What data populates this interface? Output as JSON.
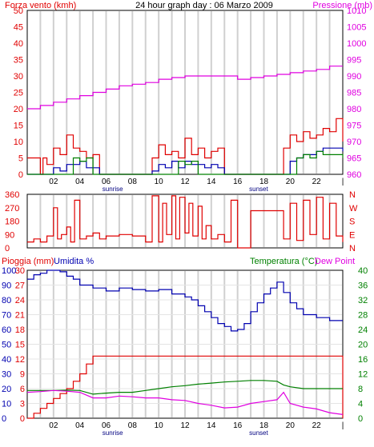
{
  "title": "24 hour graph day : 06 Marzo 2009",
  "colors": {
    "red": "#e00000",
    "magenta": "#e000e0",
    "green": "#008000",
    "blue": "#0000b0",
    "grid": "#d0d0d0",
    "frame": "#000000"
  },
  "chart_data": [
    {
      "type": "line",
      "name": "wind-pressure",
      "left_label": "Forza vento (kmh)",
      "right_label": "Pressione (mb)",
      "left_ticks": [
        "0",
        "5",
        "10",
        "15",
        "20",
        "25",
        "30",
        "35",
        "40",
        "45",
        "50"
      ],
      "right_ticks": [
        "960",
        "965",
        "970",
        "975",
        "980",
        "985",
        "990",
        "995",
        "1000",
        "1005",
        "1010"
      ],
      "ylim": [
        0,
        50
      ],
      "y2lim": [
        960,
        1010
      ],
      "x_ticks": [
        "02",
        "04",
        "06",
        "08",
        "10",
        "12",
        "14",
        "16",
        "18",
        "20",
        "22"
      ],
      "sunrise_label": "sunrise",
      "sunset_label": "sunset",
      "series": [
        {
          "name": "gust",
          "color": "#e00000",
          "x": [
            0,
            1,
            1.2,
            1.5,
            2,
            2.5,
            3,
            3.5,
            4,
            4.5,
            5,
            5.5,
            6,
            8,
            9,
            9.5,
            10,
            10.5,
            11,
            11.5,
            12,
            12.5,
            13,
            13.5,
            14,
            14.5,
            15,
            16,
            18,
            19.5,
            20,
            20.5,
            21,
            21.5,
            22,
            22.5,
            23,
            23.5,
            24
          ],
          "y": [
            5,
            0,
            5,
            3,
            8,
            6,
            12,
            8,
            7,
            5,
            6,
            0,
            0,
            0,
            0,
            5,
            9,
            6,
            7,
            5,
            11,
            6,
            8,
            5,
            7,
            8,
            0,
            0,
            0,
            8,
            12,
            10,
            13,
            11,
            12,
            14,
            13,
            17,
            10
          ]
        },
        {
          "name": "average",
          "color": "#0000b0",
          "x": [
            0,
            1.5,
            2,
            2.5,
            3,
            3.5,
            4,
            4.5,
            5,
            5.5,
            8,
            9,
            9.5,
            10,
            10.5,
            11,
            11.5,
            12,
            12.5,
            13,
            13.5,
            14,
            14.5,
            15,
            18,
            19.5,
            20,
            20.5,
            21,
            21.5,
            22,
            22.5,
            23,
            23.5,
            24
          ],
          "y": [
            0,
            0,
            2,
            1,
            3,
            3,
            4,
            2,
            2,
            0,
            0,
            0,
            1,
            3,
            2,
            4,
            2,
            4,
            3,
            3,
            2,
            3,
            2,
            0,
            0,
            0,
            4,
            5,
            6,
            6,
            7,
            8,
            8,
            8,
            7
          ]
        },
        {
          "name": "wind",
          "color": "#008000",
          "x": [
            0,
            3,
            3.5,
            4,
            4.5,
            5,
            9,
            11,
            11.5,
            12,
            12.5,
            13,
            20,
            20.5,
            21,
            21.5,
            22,
            22.5,
            23,
            23.5,
            24
          ],
          "y": [
            0,
            0,
            5,
            4,
            5,
            0,
            0,
            0,
            4,
            3,
            4,
            0,
            0,
            5,
            6,
            5,
            7,
            6,
            6,
            6,
            5
          ]
        },
        {
          "name": "pressure",
          "color": "#e000e0",
          "x": [
            0,
            1,
            2,
            3,
            4,
            5,
            6,
            7,
            8,
            9,
            10,
            11,
            12,
            13,
            14,
            15,
            16,
            17,
            18,
            19,
            20,
            21,
            22,
            23,
            24
          ],
          "y": [
            980,
            981,
            982,
            983,
            984,
            985,
            986,
            987,
            987.5,
            988,
            989,
            989.5,
            990,
            990,
            990,
            990,
            989,
            989.5,
            990,
            990.5,
            991,
            991.5,
            992,
            993,
            993
          ]
        }
      ]
    },
    {
      "type": "line",
      "name": "wind-direction",
      "left_ticks": [
        "360",
        "270",
        "180",
        "90",
        "0"
      ],
      "right_ticks": [
        "N",
        "W",
        "S",
        "E",
        "N"
      ],
      "ylim": [
        0,
        360
      ],
      "series": [
        {
          "name": "direction",
          "color": "#e00000",
          "x": [
            0,
            0.5,
            1,
            1.5,
            2,
            2.3,
            2.6,
            3,
            3.3,
            3.6,
            4,
            4.5,
            5,
            5.5,
            6,
            7,
            8,
            9,
            9.5,
            10,
            10.3,
            10.6,
            11,
            11.3,
            11.6,
            12,
            12.3,
            12.6,
            13,
            13.3,
            13.6,
            14,
            14.5,
            15,
            15.5,
            16,
            16.5,
            17,
            19,
            19.5,
            20,
            20.5,
            21,
            21.5,
            22,
            22.5,
            23,
            23.5,
            24
          ],
          "y": [
            40,
            60,
            40,
            80,
            270,
            60,
            90,
            140,
            40,
            320,
            60,
            80,
            100,
            60,
            80,
            90,
            80,
            40,
            350,
            40,
            300,
            90,
            350,
            60,
            340,
            100,
            300,
            80,
            280,
            60,
            150,
            60,
            90,
            40,
            320,
            0,
            0,
            250,
            250,
            60,
            300,
            50,
            320,
            90,
            340,
            60,
            300,
            80,
            40
          ]
        }
      ]
    },
    {
      "type": "line",
      "name": "rain-humidity-temperature",
      "left_label": "Pioggia (mm)",
      "left2_label": "Umidita %",
      "right_label": "Temperatura (°C)",
      "right2_label": "Dew Point",
      "rain_ticks": [
        "0",
        "3",
        "6",
        "9",
        "12",
        "15",
        "18",
        "21",
        "24",
        "27",
        "30"
      ],
      "humidity_ticks": [
        "0",
        "10",
        "20",
        "30",
        "40",
        "50",
        "60",
        "70",
        "80",
        "90",
        "100"
      ],
      "temp_ticks": [
        "0",
        "4",
        "8",
        "12",
        "16",
        "20",
        "24",
        "28",
        "32",
        "36",
        "40"
      ],
      "ylim": [
        0,
        30
      ],
      "x_ticks": [
        "02",
        "04",
        "06",
        "08",
        "10",
        "12",
        "14",
        "16",
        "18",
        "20",
        "22"
      ],
      "sunrise_label": "sunrise",
      "sunset_label": "sunset",
      "series": [
        {
          "name": "rain",
          "color": "#e00000",
          "x": [
            0,
            0.5,
            1,
            1.5,
            2,
            2.5,
            3,
            3.5,
            4,
            4.5,
            5,
            12,
            20,
            24,
            24
          ],
          "y": [
            0,
            1,
            2,
            3,
            4,
            5,
            6,
            7.5,
            9,
            11,
            12.6,
            12.6,
            12.6,
            12.6,
            0
          ]
        },
        {
          "name": "humidity",
          "color": "#0000b0",
          "x": [
            0,
            0.5,
            1,
            1.5,
            2,
            2.5,
            3,
            3.5,
            4,
            4.5,
            5,
            6,
            7,
            8,
            9,
            10,
            11,
            12,
            12.5,
            13,
            13.5,
            14,
            14.5,
            15,
            15.5,
            16,
            16.5,
            17,
            17.5,
            18,
            18.5,
            19,
            19.5,
            20,
            20.5,
            21,
            22,
            23,
            24
          ],
          "y": [
            94,
            97,
            98,
            100,
            100,
            99,
            96,
            94,
            90,
            90,
            88,
            86,
            88,
            87,
            86,
            87,
            84,
            82,
            80,
            76,
            72,
            68,
            64,
            62,
            59,
            60,
            64,
            72,
            78,
            84,
            88,
            92,
            85,
            78,
            74,
            70,
            68,
            66,
            66
          ]
        },
        {
          "name": "temperature",
          "color": "#008000",
          "x": [
            0,
            2,
            3,
            4,
            5,
            6,
            7,
            8,
            9,
            10,
            11,
            12,
            13,
            14,
            15,
            16,
            17,
            18,
            19,
            19.5,
            20,
            21,
            22,
            23,
            24
          ],
          "y": [
            7.5,
            7.5,
            7.6,
            7.5,
            6.5,
            6.8,
            7,
            7,
            7.5,
            8,
            8.5,
            8.8,
            9.2,
            9.5,
            9.8,
            10,
            10.2,
            10.2,
            10,
            9,
            8.5,
            8,
            8,
            8,
            8
          ]
        },
        {
          "name": "dewpoint",
          "color": "#e000e0",
          "x": [
            0,
            1,
            2,
            3,
            4,
            5,
            6,
            7,
            8,
            9,
            10,
            11,
            12,
            13,
            14,
            15,
            16,
            17,
            18,
            19,
            19.5,
            20,
            21,
            22,
            23,
            24
          ],
          "y": [
            7,
            7.2,
            7.5,
            7.3,
            7,
            5.5,
            5.5,
            6,
            5.8,
            5.5,
            5.5,
            5,
            4.8,
            4,
            3.5,
            2.8,
            3,
            4,
            4.5,
            5,
            7,
            4,
            3,
            2.5,
            1.5,
            1
          ]
        }
      ]
    }
  ]
}
